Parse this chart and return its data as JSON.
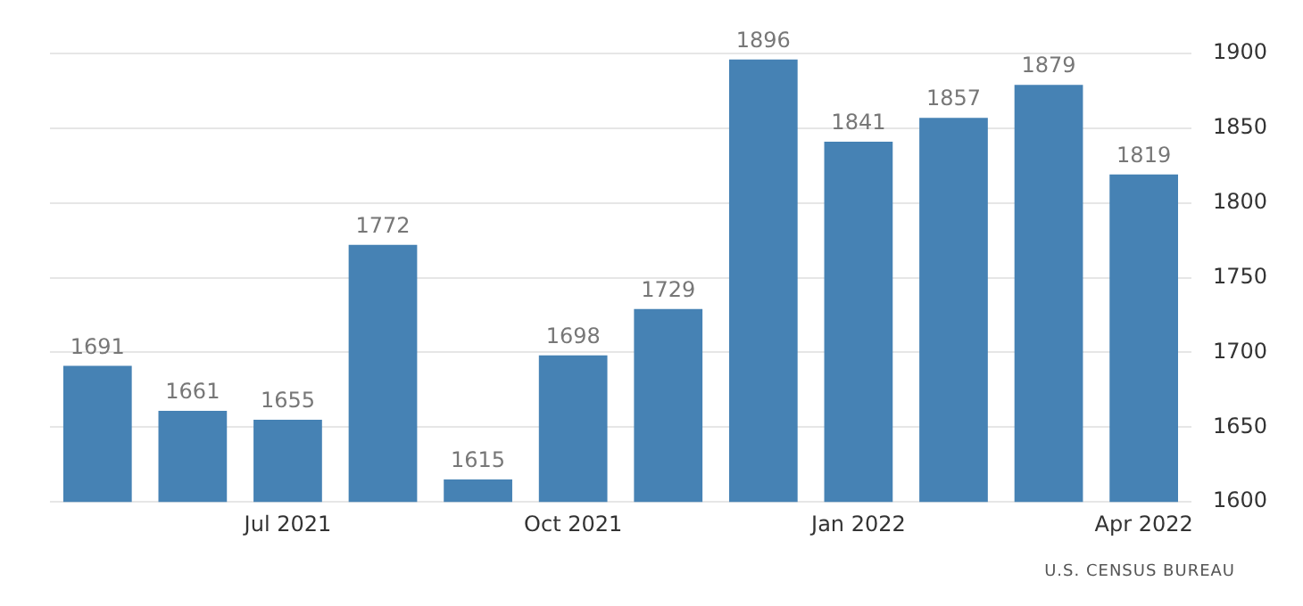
{
  "chart_data": {
    "type": "bar",
    "categories": [
      null,
      null,
      "Jul 2021",
      null,
      null,
      "Oct 2021",
      null,
      null,
      "Jan 2022",
      null,
      null,
      "Apr 2022"
    ],
    "values": [
      1691,
      1661,
      1655,
      1772,
      1615,
      1698,
      1729,
      1896,
      1841,
      1857,
      1879,
      1819
    ],
    "color": "#4682b4",
    "ylim": [
      1600,
      1900
    ],
    "yticks": [
      1600,
      1650,
      1700,
      1750,
      1800,
      1850,
      1900
    ],
    "grid": "y",
    "data_labels": true,
    "legend": false,
    "annotations": [
      "U.S. CENSUS BUREAU"
    ]
  }
}
